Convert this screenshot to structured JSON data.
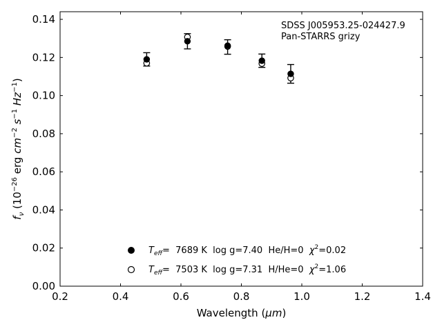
{
  "chart_data": {
    "type": "scatter",
    "xlabel": "Wavelength (μm)",
    "ylabel": "f_ν (10^−26 erg cm^−2 s^−1 Hz^−1)",
    "xlim": [
      0.2,
      1.4
    ],
    "ylim": [
      0.0,
      0.144
    ],
    "xticks": [
      0.2,
      0.4,
      0.6,
      0.8,
      1.0,
      1.2,
      1.4
    ],
    "xtick_labels": [
      "0.2",
      "0.4",
      "0.6",
      "0.8",
      "1.0",
      "1.2",
      "1.4"
    ],
    "yticks": [
      0.0,
      0.02,
      0.04,
      0.06,
      0.08,
      0.1,
      0.12,
      0.14
    ],
    "ytick_labels": [
      "0.00",
      "0.02",
      "0.04",
      "0.06",
      "0.08",
      "0.10",
      "0.12",
      "0.14"
    ],
    "grid": false,
    "legend_position": "bottom-center",
    "annotations": [
      "SDSS J005953.25-024427.9",
      "Pan-STARRS grizy"
    ],
    "observed": {
      "x": [
        0.4866,
        0.6215,
        0.7545,
        0.8679,
        0.9633
      ],
      "y": [
        0.119,
        0.1285,
        0.1255,
        0.1183,
        0.1114
      ],
      "yerr": [
        0.0035,
        0.004,
        0.0038,
        0.0035,
        0.0049
      ]
    },
    "series": [
      {
        "name": "T_eff= 7689 K log g=7.40 He/H=0 χ²=0.02",
        "legend_parts": {
          "t": "T",
          "sub": "eff",
          "eq": "=  7689 K  log g=7.40  He/H=0  ",
          "chi": "χ",
          "sup": "2",
          "tail": "=0.02"
        },
        "marker": "filled-circle",
        "x": [
          0.4866,
          0.6215,
          0.7545,
          0.8679,
          0.9633
        ],
        "y": [
          0.119,
          0.1285,
          0.1262,
          0.1183,
          0.1114
        ]
      },
      {
        "name": "T_eff= 7503 K log g=7.31 H/He=0 χ²=1.06",
        "legend_parts": {
          "t": "T",
          "sub": "eff",
          "eq": "=  7503 K  log g=7.31  H/He=0  ",
          "chi": "χ",
          "sup": "2",
          "tail": "=1.06"
        },
        "marker": "open-circle",
        "x": [
          0.4866,
          0.6215,
          0.7545,
          0.8679,
          0.9633
        ],
        "y": [
          0.117,
          0.1307,
          0.1258,
          0.1168,
          0.1092
        ]
      }
    ],
    "colors": {
      "marker": "#000000",
      "errorbar": "#000000",
      "background": "#ffffff"
    }
  }
}
